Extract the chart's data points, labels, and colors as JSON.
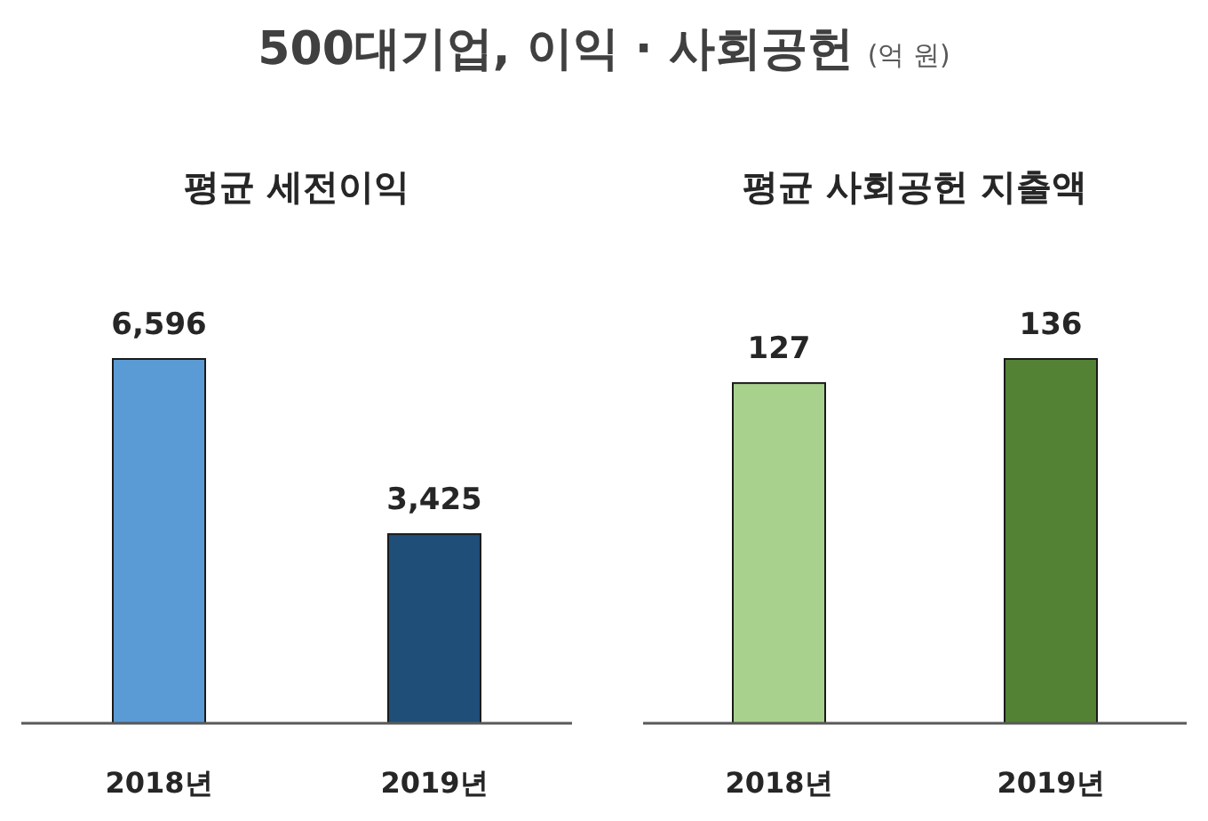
{
  "chart_data": [
    {
      "type": "bar",
      "title": "500대기업, 이익 · 사회공헌 (억 원)",
      "subtitle": "평균 세전이익",
      "categories": [
        "2018년",
        "2019년"
      ],
      "values": [
        6596,
        3425
      ],
      "colors": [
        "#5b9bd5",
        "#1f4e79"
      ],
      "value_labels": [
        "6,596",
        "3,425"
      ]
    },
    {
      "type": "bar",
      "subtitle": "평균 사회공헌 지출액",
      "categories": [
        "2018년",
        "2019년"
      ],
      "values": [
        127,
        136
      ],
      "colors": [
        "#a9d18e",
        "#548235"
      ],
      "value_labels": [
        "127",
        "136"
      ]
    }
  ]
}
